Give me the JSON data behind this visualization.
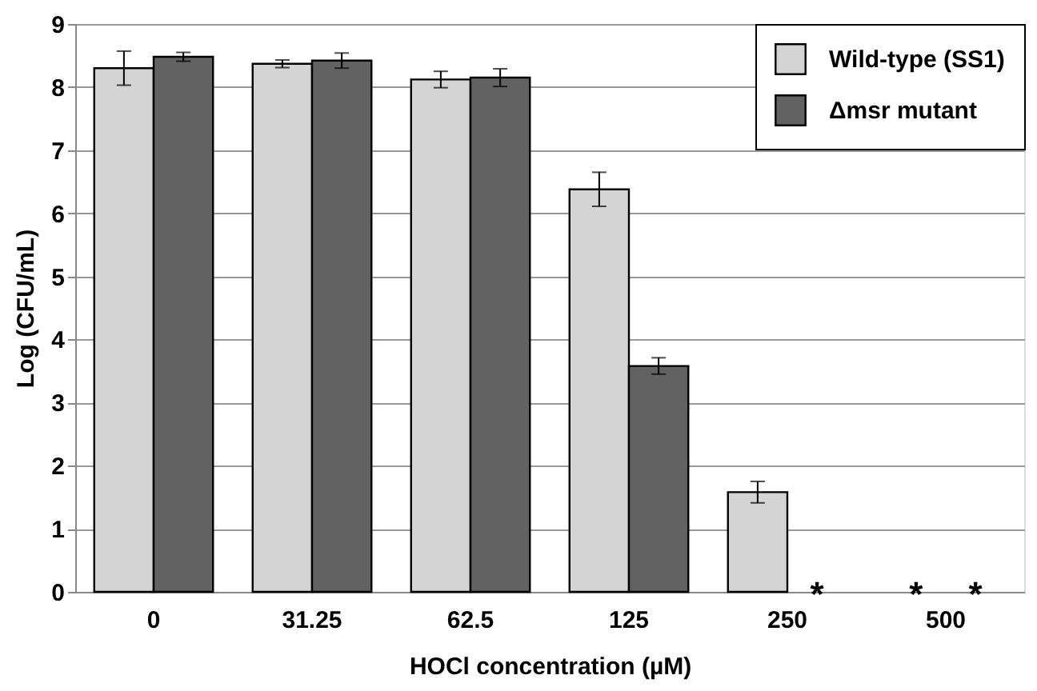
{
  "chart_data": {
    "type": "bar",
    "xlabel": "HOCl concentration (µM)",
    "ylabel": "Log (CFU/mL)",
    "categories": [
      "0",
      "31.25",
      "62.5",
      "125",
      "250",
      "500"
    ],
    "series": [
      {
        "name": "Wild-type (SS1)",
        "color": "#d4d4d4",
        "values": [
          8.3,
          8.37,
          8.12,
          6.38,
          1.58,
          null
        ],
        "errors": [
          0.27,
          0.06,
          0.13,
          0.27,
          0.17,
          null
        ]
      },
      {
        "name": "Δmsr mutant",
        "color": "#626262",
        "values": [
          8.48,
          8.42,
          8.15,
          3.58,
          null,
          null
        ],
        "errors": [
          0.07,
          0.12,
          0.14,
          0.13,
          null,
          null
        ]
      }
    ],
    "annotations": [
      "*",
      "*",
      "*"
    ],
    "ylim": [
      0,
      9
    ],
    "yticks": [
      0,
      1,
      2,
      3,
      4,
      5,
      6,
      7,
      8,
      9
    ],
    "grid": "y",
    "legend": "top right"
  }
}
